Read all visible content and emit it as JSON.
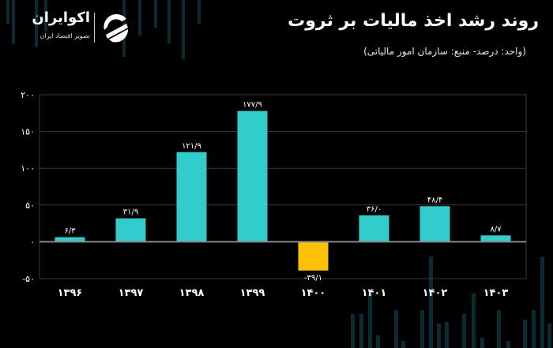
{
  "header": {
    "title": "روند رشد اخذ مالیات بر ثروت",
    "subtitle": "(واحد: درصد- منبع: سازمان امور مالیاتی)"
  },
  "logo": {
    "name": "اکوایران",
    "tagline": "تصویر اقتصاد ایران"
  },
  "colors": {
    "positive": "#33CCCC",
    "negative": "#FFC107",
    "background": "#000000",
    "grid": "#3a3a3a",
    "zero_line": "#8a8a8a",
    "bg_bars": "#0d2a30"
  },
  "chart_data": {
    "type": "bar",
    "title": "روند رشد اخذ مالیات بر ثروت",
    "subtitle": "(واحد: درصد- منبع: سازمان امور مالیاتی)",
    "categories": [
      "۱۳۹۶",
      "۱۳۹۷",
      "۱۳۹۸",
      "۱۳۹۹",
      "۱۴۰۰",
      "۱۴۰۱",
      "۱۴۰۲",
      "۱۴۰۳"
    ],
    "categories_latin": [
      "1396",
      "1397",
      "1398",
      "1399",
      "1400",
      "1401",
      "1402",
      "1403"
    ],
    "values": [
      6.3,
      31.9,
      121.9,
      177.9,
      -39.1,
      36.0,
      48.4,
      8.7
    ],
    "data_labels": [
      "۶/۳",
      "۳۱/۹",
      "۱۲۱/۹",
      "۱۷۷/۹",
      "-۳۹/۱",
      "۳۶/۰",
      "۴۸/۴",
      "۸/۷"
    ],
    "xlabel": "",
    "ylabel": "",
    "ylim": [
      -50,
      200
    ],
    "yticks": [
      -50,
      0,
      50,
      100,
      150,
      200
    ],
    "ytick_labels": [
      "-۵۰",
      "۰",
      "۵۰",
      "۱۰۰",
      "۱۵۰",
      "۲۰۰"
    ],
    "grid": true,
    "legend": null
  }
}
